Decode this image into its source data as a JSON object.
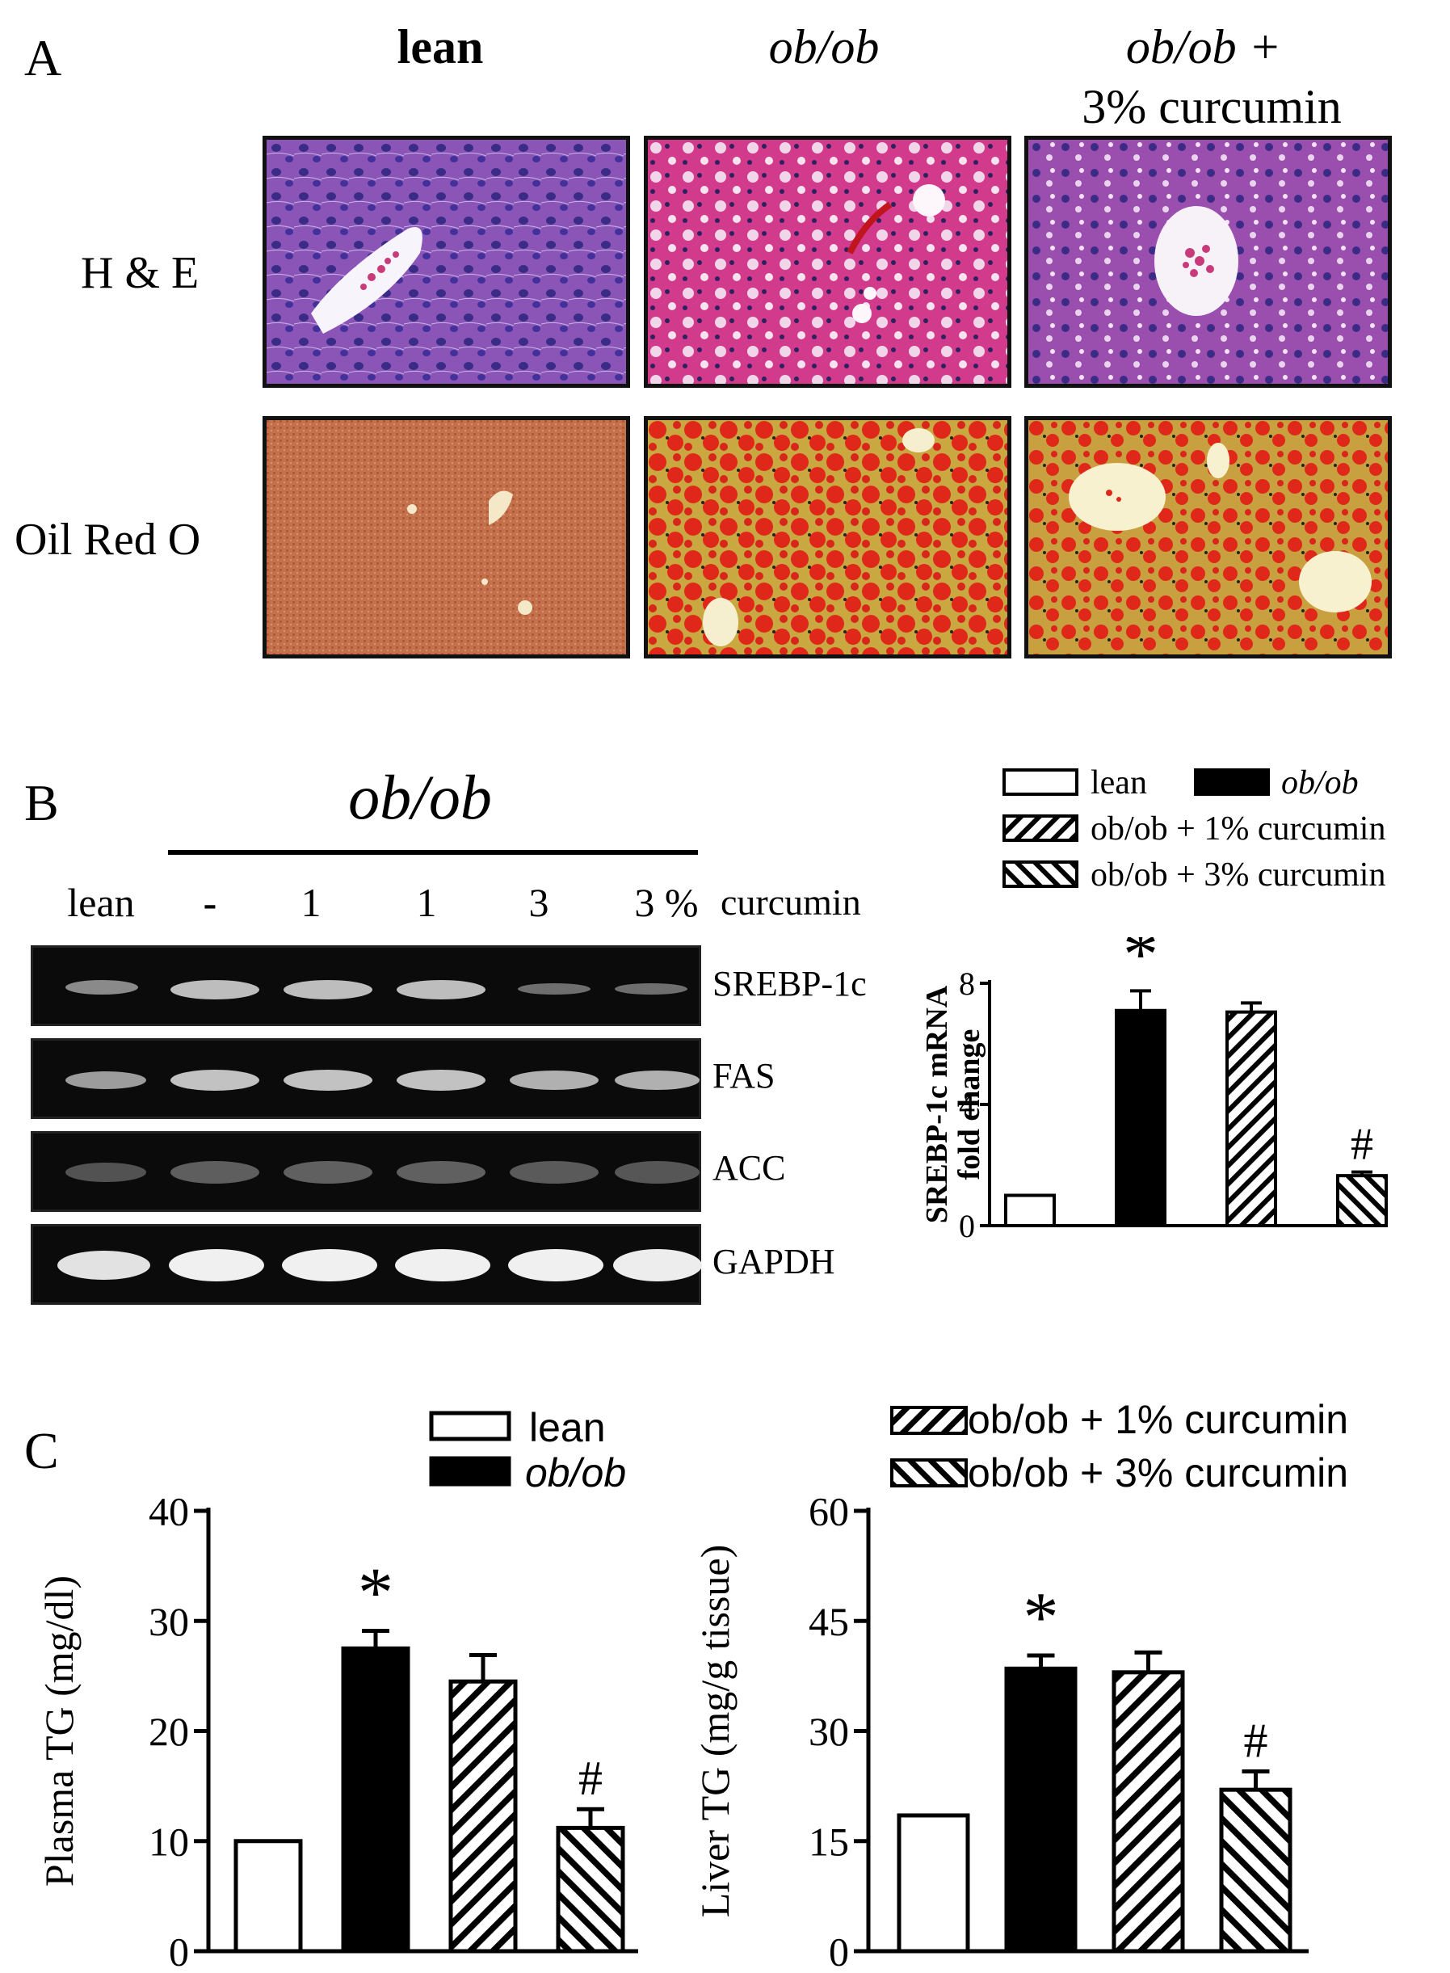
{
  "panelA": {
    "letter": "A",
    "columns": [
      "lean",
      "ob/ob",
      "ob/ob +",
      "3% curcumin"
    ],
    "rows": [
      "H & E",
      "Oil Red O"
    ],
    "colors": {
      "he_bg": "#8a4fb4",
      "he_nucleus": "#3b2f8f",
      "he_pink": "#d0358a",
      "oro_lean": "#c4704a",
      "oro_red": "#e0281a",
      "oro_gold": "#c9a842",
      "lumen": "#fbf4dc"
    }
  },
  "panelB": {
    "letter": "B",
    "group_label": "ob/ob",
    "lanes": [
      "lean",
      "-",
      "1",
      "1",
      "3",
      "3 %"
    ],
    "lane_unit": "curcumin",
    "genes": [
      "SREBP-1c",
      "FAS",
      "ACC",
      "GAPDH"
    ],
    "legend": [
      "lean",
      "ob/ob",
      "ob/ob + 1% curcumin",
      "ob/ob + 3% curcumin"
    ]
  },
  "panelC": {
    "letter": "C",
    "legend": [
      "lean",
      "ob/ob",
      "ob/ob + 1% curcumin",
      "ob/ob + 3% curcumin"
    ]
  },
  "chart_data": [
    {
      "type": "bar",
      "panel": "B",
      "ylabel": "SREBP-1c mRNA fold change",
      "ylim": [
        0,
        8
      ],
      "yticks": [
        0,
        4,
        8
      ],
      "categories": [
        "lean",
        "ob/ob",
        "ob/ob + 1% curcumin",
        "ob/ob + 3% curcumin"
      ],
      "values": [
        1.0,
        7.1,
        7.05,
        1.65
      ],
      "errors": [
        0,
        0.65,
        0.3,
        0.12
      ],
      "annotations": [
        "",
        "*",
        "",
        "#"
      ],
      "fills": [
        "white",
        "black",
        "hatch-right",
        "hatch-left"
      ]
    },
    {
      "type": "bar",
      "panel": "C-left",
      "ylabel": "Plasma TG (mg/dl)",
      "ylim": [
        0,
        40
      ],
      "yticks": [
        0,
        10,
        20,
        30,
        40
      ],
      "categories": [
        "lean",
        "ob/ob",
        "ob/ob + 1% curcumin",
        "ob/ob + 3% curcumin"
      ],
      "values": [
        10,
        27.5,
        24.5,
        11.2
      ],
      "errors": [
        0,
        1.6,
        2.4,
        1.7
      ],
      "annotations": [
        "",
        "*",
        "",
        "#"
      ],
      "fills": [
        "white",
        "black",
        "hatch-right",
        "hatch-left"
      ]
    },
    {
      "type": "bar",
      "panel": "C-right",
      "ylabel": "Liver TG (mg/g tissue)",
      "ylim": [
        0,
        60
      ],
      "yticks": [
        0,
        15,
        30,
        45,
        60
      ],
      "categories": [
        "lean",
        "ob/ob",
        "ob/ob + 1% curcumin",
        "ob/ob + 3% curcumin"
      ],
      "values": [
        18.5,
        38.5,
        38,
        22
      ],
      "errors": [
        0,
        1.8,
        2.7,
        2.5
      ],
      "annotations": [
        "",
        "*",
        "",
        "#"
      ],
      "fills": [
        "white",
        "black",
        "hatch-right",
        "hatch-left"
      ]
    }
  ]
}
